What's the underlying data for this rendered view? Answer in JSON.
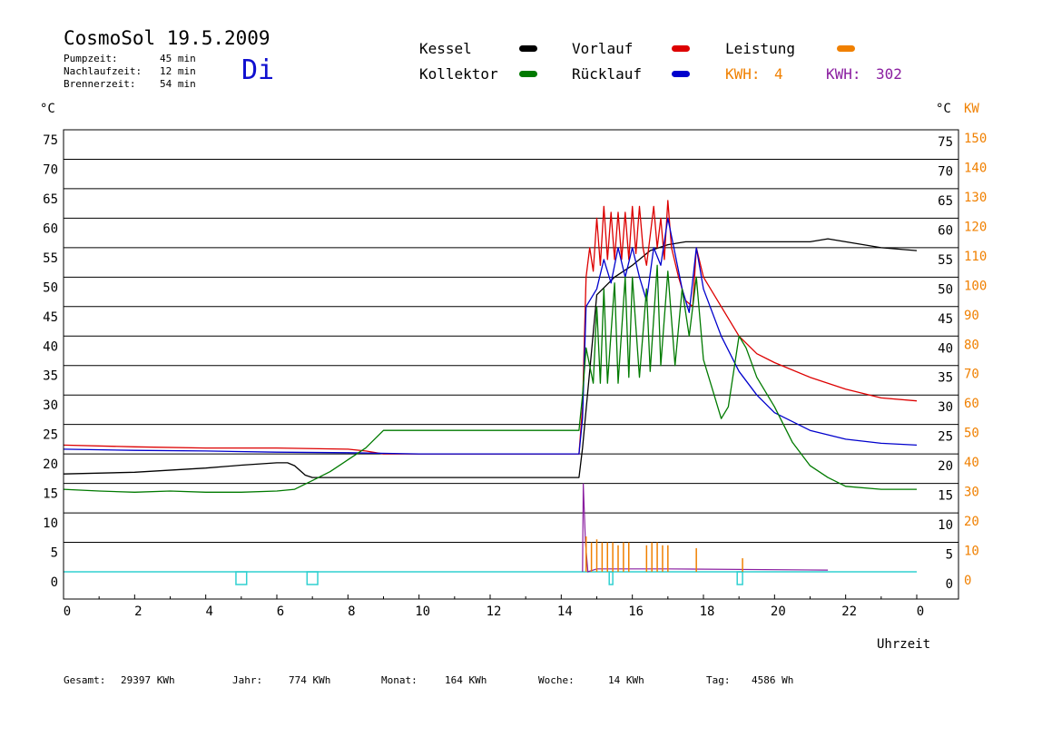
{
  "header": {
    "title": "CosmoSol 19.5.2009",
    "day": "Di",
    "stats": [
      {
        "label": "Pumpzeit:",
        "value": "45 min"
      },
      {
        "label": "Nachlaufzeit:",
        "value": "12 min"
      },
      {
        "label": "Brennerzeit:",
        "value": "54 min"
      }
    ]
  },
  "legend": {
    "kessel": "Kessel",
    "vorlauf": "Vorlauf",
    "leistung": "Leistung",
    "kollektor": "Kollektor",
    "ruecklauf": "Rücklauf",
    "kwh1_label": "KWH:",
    "kwh1_value": "4",
    "kwh2_label": "KWH:",
    "kwh2_value": "302"
  },
  "axes": {
    "left_unit": "°C",
    "right_unit": "°C",
    "power_unit": "KW",
    "xlabel": "Uhrzeit"
  },
  "footer": {
    "gesamt_label": "Gesamt:",
    "gesamt_value": "29397 KWh",
    "jahr_label": "Jahr:",
    "jahr_value": "774 KWh",
    "monat_label": "Monat:",
    "monat_value": "164 KWh",
    "woche_label": "Woche:",
    "woche_value": "14 KWh",
    "tag_label": "Tag:",
    "tag_value": "4586 Wh"
  },
  "chart_data": {
    "type": "line",
    "title": "CosmoSol 19.5.2009",
    "xlabel": "Uhrzeit",
    "ylabel": "°C",
    "y2label": "KW",
    "xlim": [
      0,
      24
    ],
    "ylim": [
      0,
      75
    ],
    "y2lim": [
      0,
      150
    ],
    "x_ticks": [
      "0",
      "2",
      "4",
      "6",
      "8",
      "10",
      "12",
      "14",
      "16",
      "18",
      "20",
      "22",
      "0"
    ],
    "y_ticks": [
      0,
      5,
      10,
      15,
      20,
      25,
      30,
      35,
      40,
      45,
      50,
      55,
      60,
      65,
      70,
      75
    ],
    "y2_ticks": [
      0,
      10,
      20,
      30,
      40,
      50,
      60,
      70,
      80,
      90,
      100,
      110,
      120,
      130,
      140,
      150
    ],
    "grid": true,
    "legend_position": "top",
    "colors": {
      "kessel": "#000000",
      "vorlauf": "#dd0000",
      "ruecklauf": "#0000cc",
      "kollektor": "#007a00",
      "leistung": "#f08000",
      "kwh2": "#8a1ea0",
      "pump": "#30d0d0"
    },
    "series": [
      {
        "name": "Kessel",
        "key": "kessel",
        "points": [
          [
            0,
            16.6
          ],
          [
            2,
            16.9
          ],
          [
            4,
            17.6
          ],
          [
            5,
            18.1
          ],
          [
            6,
            18.5
          ],
          [
            6.3,
            18.5
          ],
          [
            6.5,
            18
          ],
          [
            6.8,
            16.4
          ],
          [
            7,
            16
          ],
          [
            9,
            16
          ],
          [
            12,
            16
          ],
          [
            14.5,
            16
          ],
          [
            14.6,
            21
          ],
          [
            15,
            47
          ],
          [
            15.5,
            50
          ],
          [
            16,
            52
          ],
          [
            16.5,
            54.5
          ],
          [
            17,
            55.5
          ],
          [
            17.5,
            56
          ],
          [
            18,
            56
          ],
          [
            19,
            56
          ],
          [
            20,
            56
          ],
          [
            21,
            56
          ],
          [
            21.5,
            56.5
          ],
          [
            22,
            56
          ],
          [
            22.5,
            55.5
          ],
          [
            23,
            55
          ],
          [
            24,
            54.5
          ]
        ]
      },
      {
        "name": "Vorlauf",
        "key": "vorlauf",
        "points": [
          [
            0,
            21.5
          ],
          [
            2,
            21.2
          ],
          [
            4,
            21
          ],
          [
            6,
            21
          ],
          [
            8,
            20.8
          ],
          [
            8.5,
            20.5
          ],
          [
            9,
            20
          ],
          [
            12,
            20
          ],
          [
            14.5,
            20
          ],
          [
            14.6,
            28
          ],
          [
            14.7,
            50
          ],
          [
            14.8,
            55
          ],
          [
            14.9,
            51
          ],
          [
            15,
            60
          ],
          [
            15.1,
            52
          ],
          [
            15.2,
            62
          ],
          [
            15.3,
            53
          ],
          [
            15.4,
            61
          ],
          [
            15.5,
            53
          ],
          [
            15.6,
            61
          ],
          [
            15.7,
            53
          ],
          [
            15.8,
            61
          ],
          [
            15.9,
            53
          ],
          [
            16,
            62
          ],
          [
            16.1,
            54
          ],
          [
            16.2,
            62
          ],
          [
            16.3,
            55
          ],
          [
            16.4,
            52
          ],
          [
            16.5,
            57
          ],
          [
            16.6,
            62
          ],
          [
            16.7,
            55
          ],
          [
            16.8,
            60
          ],
          [
            16.9,
            53
          ],
          [
            17,
            63
          ],
          [
            17.1,
            55
          ],
          [
            17.3,
            50
          ],
          [
            17.5,
            46
          ],
          [
            17.7,
            45
          ],
          [
            17.8,
            55
          ],
          [
            18,
            50
          ],
          [
            18.5,
            45
          ],
          [
            19,
            40
          ],
          [
            19.5,
            37
          ],
          [
            20,
            35.5
          ],
          [
            21,
            33
          ],
          [
            22,
            31
          ],
          [
            23,
            29.5
          ],
          [
            24,
            29
          ]
        ]
      },
      {
        "name": "Rücklauf",
        "key": "ruecklauf",
        "points": [
          [
            0,
            20.8
          ],
          [
            2,
            20.6
          ],
          [
            4,
            20.5
          ],
          [
            6,
            20.3
          ],
          [
            8,
            20.2
          ],
          [
            10,
            20
          ],
          [
            12,
            20
          ],
          [
            14.5,
            20
          ],
          [
            14.6,
            26
          ],
          [
            14.7,
            45
          ],
          [
            15,
            48
          ],
          [
            15.2,
            53
          ],
          [
            15.4,
            49
          ],
          [
            15.6,
            55
          ],
          [
            15.8,
            50
          ],
          [
            16,
            55
          ],
          [
            16.2,
            50
          ],
          [
            16.4,
            46
          ],
          [
            16.6,
            55
          ],
          [
            16.8,
            52
          ],
          [
            17,
            60
          ],
          [
            17.2,
            54
          ],
          [
            17.4,
            48
          ],
          [
            17.6,
            44
          ],
          [
            17.8,
            55
          ],
          [
            18,
            48
          ],
          [
            18.5,
            40
          ],
          [
            19,
            34
          ],
          [
            19.5,
            30
          ],
          [
            20,
            27
          ],
          [
            21,
            24
          ],
          [
            22,
            22.5
          ],
          [
            23,
            21.8
          ],
          [
            24,
            21.5
          ]
        ]
      },
      {
        "name": "Kollektor",
        "key": "kollektor",
        "points": [
          [
            0,
            14
          ],
          [
            1,
            13.7
          ],
          [
            2,
            13.5
          ],
          [
            3,
            13.7
          ],
          [
            4,
            13.5
          ],
          [
            5,
            13.5
          ],
          [
            6,
            13.7
          ],
          [
            6.5,
            14
          ],
          [
            7,
            15.5
          ],
          [
            7.5,
            17
          ],
          [
            8,
            19
          ],
          [
            8.5,
            21
          ],
          [
            9,
            24
          ],
          [
            10,
            24
          ],
          [
            12,
            24
          ],
          [
            14.5,
            24
          ],
          [
            14.6,
            30
          ],
          [
            14.7,
            38
          ],
          [
            14.9,
            32
          ],
          [
            15,
            45
          ],
          [
            15.1,
            32
          ],
          [
            15.2,
            48
          ],
          [
            15.3,
            32
          ],
          [
            15.5,
            49
          ],
          [
            15.6,
            32
          ],
          [
            15.8,
            50
          ],
          [
            15.9,
            33
          ],
          [
            16,
            50
          ],
          [
            16.2,
            33
          ],
          [
            16.4,
            48
          ],
          [
            16.5,
            34
          ],
          [
            16.7,
            52
          ],
          [
            16.8,
            35
          ],
          [
            17,
            51
          ],
          [
            17.2,
            35
          ],
          [
            17.4,
            48
          ],
          [
            17.6,
            40
          ],
          [
            17.8,
            50
          ],
          [
            18,
            36
          ],
          [
            18.3,
            30
          ],
          [
            18.5,
            26
          ],
          [
            18.7,
            28
          ],
          [
            19,
            40
          ],
          [
            19.2,
            38
          ],
          [
            19.5,
            33
          ],
          [
            20,
            28
          ],
          [
            20.5,
            22
          ],
          [
            21,
            18
          ],
          [
            21.5,
            16
          ],
          [
            22,
            14.5
          ],
          [
            23,
            14
          ],
          [
            24,
            14
          ]
        ]
      }
    ],
    "leistung_spikes": [
      [
        14.7,
        6
      ],
      [
        14.85,
        5
      ],
      [
        15,
        5.5
      ],
      [
        15.15,
        5
      ],
      [
        15.3,
        5
      ],
      [
        15.45,
        5
      ],
      [
        15.6,
        4.5
      ],
      [
        15.75,
        5
      ],
      [
        15.9,
        5
      ],
      [
        16.4,
        4.5
      ],
      [
        16.55,
        5
      ],
      [
        16.7,
        5
      ],
      [
        16.85,
        4.5
      ],
      [
        17,
        4.5
      ],
      [
        17.8,
        4
      ],
      [
        19.1,
        2.3
      ]
    ],
    "kwh2_points": [
      [
        14.6,
        0
      ],
      [
        14.62,
        15
      ],
      [
        14.68,
        5
      ],
      [
        14.75,
        0
      ],
      [
        15,
        0.5
      ],
      [
        15.4,
        0.5
      ],
      [
        16.5,
        0.5
      ],
      [
        17,
        0.5
      ],
      [
        21.5,
        0.3
      ]
    ],
    "pump_pulses": [
      [
        4.85,
        5.15
      ],
      [
        6.85,
        7.15
      ],
      [
        15.35,
        15.45
      ],
      [
        18.95,
        19.1
      ]
    ]
  }
}
